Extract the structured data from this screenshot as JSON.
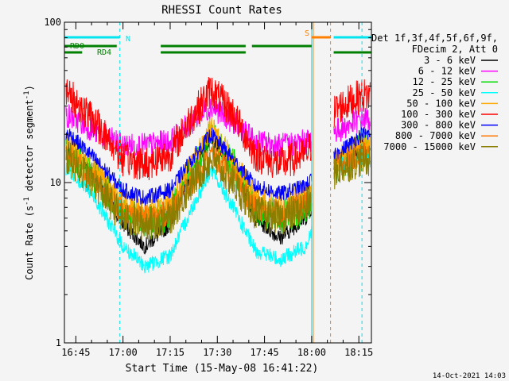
{
  "chart_data": {
    "type": "line",
    "title": "RHESSI Count Rates",
    "xlabel": "Start Time (15-May-08 16:41:22)",
    "ylabel": "Count Rate (s⁻¹ detector segment⁻¹)",
    "ylabel_parts": {
      "main": "Count Rate (s",
      "sup1": "-1",
      "mid": " detector segment",
      "sup2": "-1",
      "end": ")"
    },
    "y_scale": "log",
    "ylim": [
      1,
      100
    ],
    "y_tick_labels": [
      "1",
      "10",
      "100"
    ],
    "x_range": [
      "16:41:22",
      "18:19:00"
    ],
    "x_tick_labels": [
      "16:45",
      "17:00",
      "17:15",
      "17:30",
      "17:45",
      "18:00",
      "18:15"
    ],
    "grid": false,
    "legend_position": "right",
    "legend_header": [
      "Det 1f,3f,4f,5f,6f,9f,",
      "FDecim 2, Att 0"
    ],
    "series": [
      {
        "name": "3 - 6 keV",
        "color": "#000000",
        "values": [
          16,
          11,
          5.5,
          4.0,
          5.5,
          12,
          19,
          13,
          6.0,
          4.5,
          6.0,
          13,
          16
        ]
      },
      {
        "name": "6 - 12 keV",
        "color": "#ff00ff",
        "values": [
          26,
          21,
          17,
          17,
          18,
          24,
          30,
          24,
          18,
          17,
          18,
          21,
          25
        ]
      },
      {
        "name": "12 - 25 keV",
        "color": "#00dd00",
        "values": [
          15,
          11,
          6.5,
          5.5,
          6.5,
          12,
          20,
          13,
          7.0,
          6.0,
          7.0,
          12,
          16
        ]
      },
      {
        "name": "25 - 50 keV",
        "color": "#00ffff",
        "values": [
          12,
          8,
          4.0,
          3.0,
          3.5,
          7,
          12,
          7,
          3.8,
          3.3,
          4.0,
          13,
          14
        ]
      },
      {
        "name": "50 - 100 keV",
        "color": "#ffaa00",
        "values": [
          17,
          12,
          7.5,
          6.5,
          7.5,
          13,
          22,
          14,
          8.0,
          7.0,
          8.5,
          14,
          18
        ]
      },
      {
        "name": "100 - 300 keV",
        "color": "#ff0000",
        "values": [
          35,
          24,
          14,
          13,
          15,
          26,
          38,
          27,
          15,
          13,
          15,
          29,
          35
        ]
      },
      {
        "name": "300 - 800 keV",
        "color": "#0000ff",
        "values": [
          20,
          14,
          9.0,
          8.0,
          9.0,
          14,
          20,
          14,
          9.5,
          8.5,
          9.5,
          15,
          20
        ]
      },
      {
        "name": "800 - 7000 keV",
        "color": "#ff7700",
        "values": [
          15,
          10,
          6.5,
          6.0,
          6.5,
          10,
          15,
          11,
          7.0,
          6.5,
          7.5,
          13,
          15
        ]
      },
      {
        "name": "7000 - 15000 keV",
        "color": "#8b7d00",
        "values": [
          14,
          10,
          6.0,
          5.5,
          6.0,
          10,
          14,
          10,
          6.5,
          6.0,
          7.0,
          12,
          14
        ]
      }
    ],
    "x_times": [
      "16:43",
      "16:51",
      "17:00",
      "17:07",
      "17:15",
      "17:22",
      "17:28",
      "17:35",
      "17:42",
      "17:50",
      "17:58",
      "18:08",
      "18:16"
    ],
    "gap": [
      "18:00",
      "18:07"
    ],
    "vertical_lines": [
      {
        "time": "16:59",
        "color": "#00e5ee",
        "style": "dashed"
      },
      {
        "time": "18:00",
        "color": "#00e5ee",
        "style": "solid"
      },
      {
        "time": "18:00",
        "color": "#ff8000",
        "style": "solid"
      },
      {
        "time": "18:06",
        "color": "#ff8000",
        "style": "dashed"
      },
      {
        "time": "18:16",
        "color": "#00e5ee",
        "style": "dashed"
      }
    ],
    "flag_bars": [
      {
        "label": "N",
        "color": "#00e5ee",
        "level": 1,
        "segments": [
          [
            "16:41",
            "16:59"
          ],
          [
            "18:07",
            "18:19"
          ]
        ]
      },
      {
        "label": "S",
        "color": "#ff8000",
        "level": 1,
        "segments": [
          [
            "18:00",
            "18:06"
          ]
        ]
      },
      {
        "label": "RD0",
        "color": "#008000",
        "level": 2,
        "segments": [
          [
            "16:41",
            "16:58"
          ],
          [
            "17:12",
            "17:39"
          ],
          [
            "17:41",
            "18:00"
          ]
        ]
      },
      {
        "label": "RD4",
        "color": "#008000",
        "level": 3,
        "segments": [
          [
            "16:41",
            "16:47"
          ],
          [
            "17:12",
            "17:39"
          ],
          [
            "18:07",
            "18:19"
          ]
        ]
      }
    ]
  },
  "footer": {
    "timestamp": "14-Oct-2021 14:03"
  }
}
